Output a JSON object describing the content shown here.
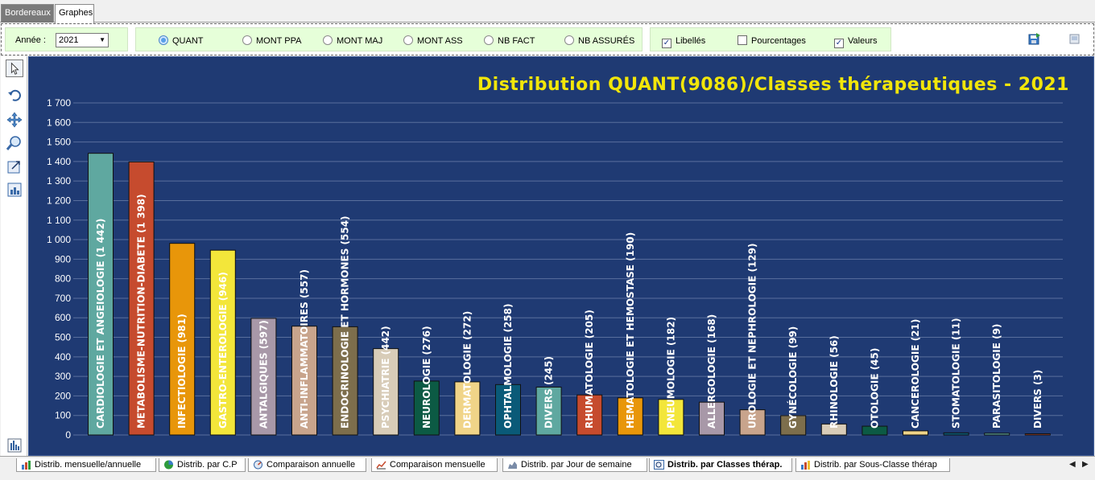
{
  "top_tabs": [
    "Bordereaux",
    "Graphes"
  ],
  "toolbar": {
    "year_label": "Année :",
    "year_value": "2021",
    "radios": [
      {
        "label": "QUANT",
        "checked": true
      },
      {
        "label": "MONT PPA",
        "checked": false
      },
      {
        "label": "MONT MAJ",
        "checked": false
      },
      {
        "label": "MONT ASS",
        "checked": false
      },
      {
        "label": "NB FACT",
        "checked": false
      },
      {
        "label": "NB ASSURÉS",
        "checked": false
      }
    ],
    "checkboxes": [
      {
        "label": "Libellés",
        "checked": true
      },
      {
        "label": "Pourcentages",
        "checked": false
      },
      {
        "label": "Valeurs",
        "checked": true
      }
    ],
    "check_mark": "✓"
  },
  "left_tools": [
    "pointer-icon",
    "undo-icon",
    "move-icon",
    "zoom-icon",
    "zoom-window-icon",
    "chart-settings-icon"
  ],
  "chart": {
    "title": "Distribution QUANT(9086)/Classes thérapeutiques - 2021"
  },
  "chart_data": {
    "type": "bar",
    "title": "Distribution QUANT(9086)/Classes thérapeutiques - 2021",
    "ylim": [
      0,
      1700
    ],
    "yticks": [
      "0",
      "100",
      "200",
      "300",
      "400",
      "500",
      "600",
      "700",
      "800",
      "900",
      "1 000",
      "1 100",
      "1 200",
      "1 300",
      "1 400",
      "1 500",
      "1 600",
      "1 700"
    ],
    "grid": true,
    "bars": [
      {
        "label": "CARDIOLOGIE ET ANGEIOLOGIE (1 442)",
        "value": 1442,
        "color": "#5fa8a0"
      },
      {
        "label": "METABOLISME-NUTRITION-DIABETE (1 398)",
        "value": 1398,
        "color": "#c64b2e"
      },
      {
        "label": "INFECTIOLOGIE (981)",
        "value": 981,
        "color": "#e8960a"
      },
      {
        "label": "GASTRO-ENTEROLOGIE (946)",
        "value": 946,
        "color": "#f3e63a"
      },
      {
        "label": "ANTALGIQUES (597)",
        "value": 597,
        "color": "#a898a8"
      },
      {
        "label": "ANTI-INFLAMMATOIRES (557)",
        "value": 557,
        "color": "#c8a48c"
      },
      {
        "label": "ENDOCRINOLOGIE ET HORMONES (554)",
        "value": 554,
        "color": "#7d6e4c"
      },
      {
        "label": "PSYCHIATRIE (442)",
        "value": 442,
        "color": "#d8ccb8"
      },
      {
        "label": "NEUROLOGIE (276)",
        "value": 276,
        "color": "#0c5a44"
      },
      {
        "label": "DERMATOLOGIE (272)",
        "value": 272,
        "color": "#f0d488"
      },
      {
        "label": "OPHTALMOLOGIE (258)",
        "value": 258,
        "color": "#0a5a78"
      },
      {
        "label": "DIVERS (245)",
        "value": 245,
        "color": "#5fa8a0"
      },
      {
        "label": "RHUMATOLOGIE (205)",
        "value": 205,
        "color": "#c64b2e"
      },
      {
        "label": "HEMATOLOGIE ET HEMOSTASE (190)",
        "value": 190,
        "color": "#e8960a"
      },
      {
        "label": "PNEUMOLOGIE (182)",
        "value": 182,
        "color": "#f3e63a"
      },
      {
        "label": "ALLERGOLOGIE (168)",
        "value": 168,
        "color": "#a898a8"
      },
      {
        "label": "UROLOGIE ET NEPHROLOGIE (129)",
        "value": 129,
        "color": "#c8a48c"
      },
      {
        "label": "GYNÉCOLOGIE (99)",
        "value": 99,
        "color": "#7d6e4c"
      },
      {
        "label": "RHINOLOGIE (56)",
        "value": 56,
        "color": "#d8ccb8"
      },
      {
        "label": "OTOLOGIE (45)",
        "value": 45,
        "color": "#0c5a44"
      },
      {
        "label": "CANCEROLOGIE (21)",
        "value": 21,
        "color": "#f0d488"
      },
      {
        "label": "STOMATOLOGIE (11)",
        "value": 11,
        "color": "#0a5a78"
      },
      {
        "label": "PARASITOLOGIE (9)",
        "value": 9,
        "color": "#5fa8a0"
      },
      {
        "label": "DIVERS (3)",
        "value": 3,
        "color": "#c64b2e"
      }
    ],
    "colors": {
      "background": "#1f3a73",
      "grid": "#8a9cc0",
      "tick_text": "#ffffff",
      "title": "#f2e60a",
      "bar_label": "#ffffff"
    }
  },
  "bottom_tabs": [
    {
      "label": "Distrib. mensuelle/annuelle",
      "active": false
    },
    {
      "label": "Distrib. par C.P",
      "active": false
    },
    {
      "label": "Comparaison annuelle",
      "active": false
    },
    {
      "label": "Comparaison mensuelle",
      "active": false
    },
    {
      "label": "Distrib. par Jour de semaine",
      "active": false
    },
    {
      "label": "Distrib. par Classes thérap.",
      "active": true
    },
    {
      "label": "Distrib. par Sous-Classe thérap",
      "active": false
    }
  ],
  "nav": {
    "prev": "◀",
    "next": "▶"
  }
}
